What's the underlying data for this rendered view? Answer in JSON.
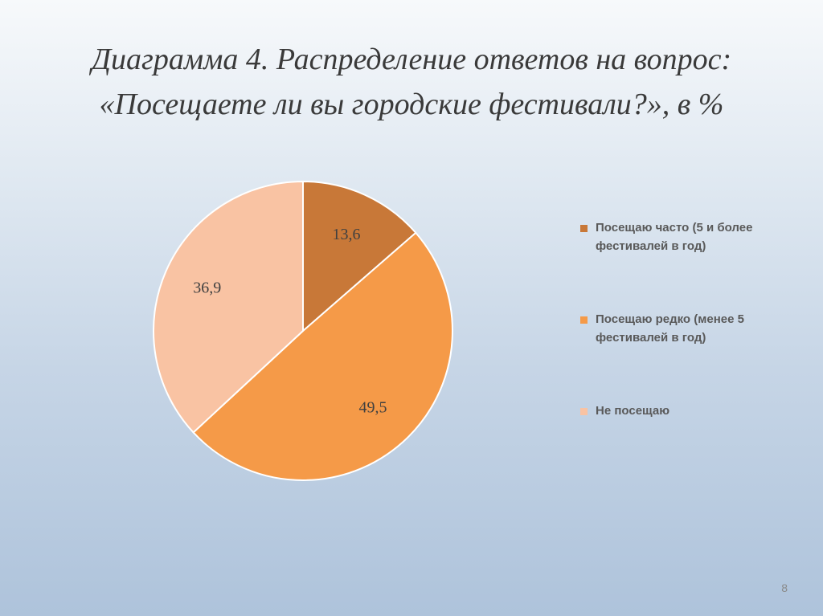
{
  "slide": {
    "title_line1": "Диаграмма 4. Распределение ответов на вопрос:",
    "title_line2": "«Посещаете ли вы городские фестивали?», в %",
    "page_number": "8"
  },
  "chart_data": {
    "type": "pie",
    "title": "Диаграмма 4. Распределение ответов на вопрос: «Посещаете ли вы городские фестивали?», в %",
    "start_angle_deg": 0,
    "direction": "clockwise",
    "legend_position": "right",
    "slices": [
      {
        "label": "Посещаю часто (5 и более фестивалей в год)",
        "value": 13.6,
        "display": "13,6",
        "color": "#c87838"
      },
      {
        "label": "Посещаю редко (менее 5 фестивалей в год)",
        "value": 49.5,
        "display": "49,5",
        "color": "#f59a48"
      },
      {
        "label": "Не посещаю",
        "value": 36.9,
        "display": "36,9",
        "color": "#f9c3a3"
      }
    ]
  },
  "legend": {
    "items": [
      {
        "text": "Посещаю часто (5 и более фестивалей в год)",
        "color": "#c87838"
      },
      {
        "text": "Посещаю редко (менее 5 фестивалей в год)",
        "color": "#f59a48"
      },
      {
        "text": "Не посещаю",
        "color": "#f9c3a3"
      }
    ]
  }
}
